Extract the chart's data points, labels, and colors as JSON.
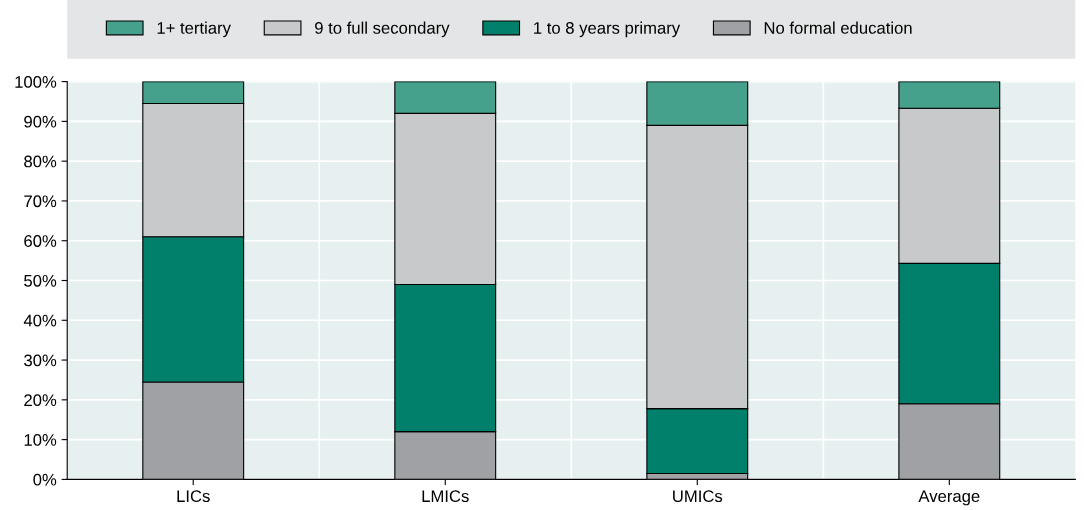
{
  "chart_data": {
    "type": "bar",
    "stacked": true,
    "categories": [
      "LICs",
      "LMICs",
      "UMICs",
      "Average"
    ],
    "series": [
      {
        "name": "No formal education",
        "color": "#a0a1a4",
        "values": [
          24.5,
          12,
          1.5,
          19
        ]
      },
      {
        "name": "1 to 8 years primary",
        "color": "#00806a",
        "values": [
          36.5,
          37,
          16.3,
          35.3
        ]
      },
      {
        "name": "9 to full secondary",
        "color": "#c8c9cb",
        "values": [
          33.5,
          43,
          71.2,
          39
        ]
      },
      {
        "name": "1+ tertiary",
        "color": "#45a08c",
        "values": [
          5.5,
          8,
          11,
          6.7
        ]
      }
    ],
    "ylim": [
      0,
      100
    ],
    "yticks": [
      {
        "value": 0,
        "label": "0%"
      },
      {
        "value": 10,
        "label": "10%"
      },
      {
        "value": 20,
        "label": "20%"
      },
      {
        "value": 30,
        "label": "30%"
      },
      {
        "value": 40,
        "label": "40%"
      },
      {
        "value": 50,
        "label": "50%"
      },
      {
        "value": 60,
        "label": "60%"
      },
      {
        "value": 70,
        "label": "70%"
      },
      {
        "value": 80,
        "label": "80%"
      },
      {
        "value": 90,
        "label": "90%"
      },
      {
        "value": 100,
        "label": "100%"
      }
    ],
    "grid": true,
    "legend": "top"
  }
}
